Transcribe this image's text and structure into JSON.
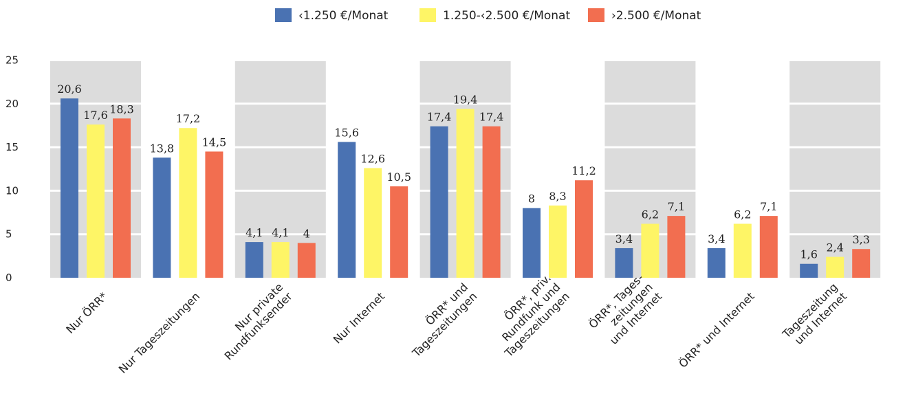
{
  "chart_data": {
    "type": "bar",
    "categories": [
      [
        "Nur ÖRR*"
      ],
      [
        "Nur Tageszeitungen"
      ],
      [
        "Nur private",
        "Rundfunksender"
      ],
      [
        "Nur Internet"
      ],
      [
        "ÖRR* und",
        "Tageszeitungen"
      ],
      [
        "ÖRR*, priv.",
        "Rundfunk und",
        "Tageszeitungen"
      ],
      [
        "ÖRR*, Tages-",
        "zeitungen",
        "und Internet"
      ],
      [
        "ÖRR* und Internet"
      ],
      [
        "Tageszeitung",
        "und Internet"
      ]
    ],
    "series": [
      {
        "name": "‹1.250 €/Monat",
        "color": "#4a72b2",
        "values": [
          20.6,
          13.8,
          4.1,
          15.6,
          17.4,
          8,
          3.4,
          3.4,
          1.6
        ],
        "labels": [
          "20,6",
          "13,8",
          "4,1",
          "15,6",
          "17,4",
          "8",
          "3,4",
          "3,4",
          "1,6"
        ]
      },
      {
        "name": "1.250-‹2.500 €/Monat",
        "color": "#fef566",
        "values": [
          17.6,
          17.2,
          4.1,
          12.6,
          19.4,
          8.3,
          6.2,
          6.2,
          2.4
        ],
        "labels": [
          "17,6",
          "17,2",
          "4,1",
          "12,6",
          "19,4",
          "8,3",
          "6,2",
          "6,2",
          "2,4"
        ]
      },
      {
        "name": "›2.500 €/Monat",
        "color": "#f26e50",
        "values": [
          18.3,
          14.5,
          4,
          10.5,
          17.4,
          11.2,
          7.1,
          7.1,
          3.3
        ],
        "labels": [
          "18,3",
          "14,5",
          "4",
          "10,5",
          "17,4",
          "11,2",
          "7,1",
          "7,1",
          "3,3"
        ]
      }
    ],
    "yticks": [
      "0",
      "5",
      "10",
      "15",
      "20",
      "25"
    ],
    "ylim": [
      0,
      25
    ],
    "legend_position": "top-center",
    "grid": true,
    "panel_color": "#dcdcdc"
  }
}
